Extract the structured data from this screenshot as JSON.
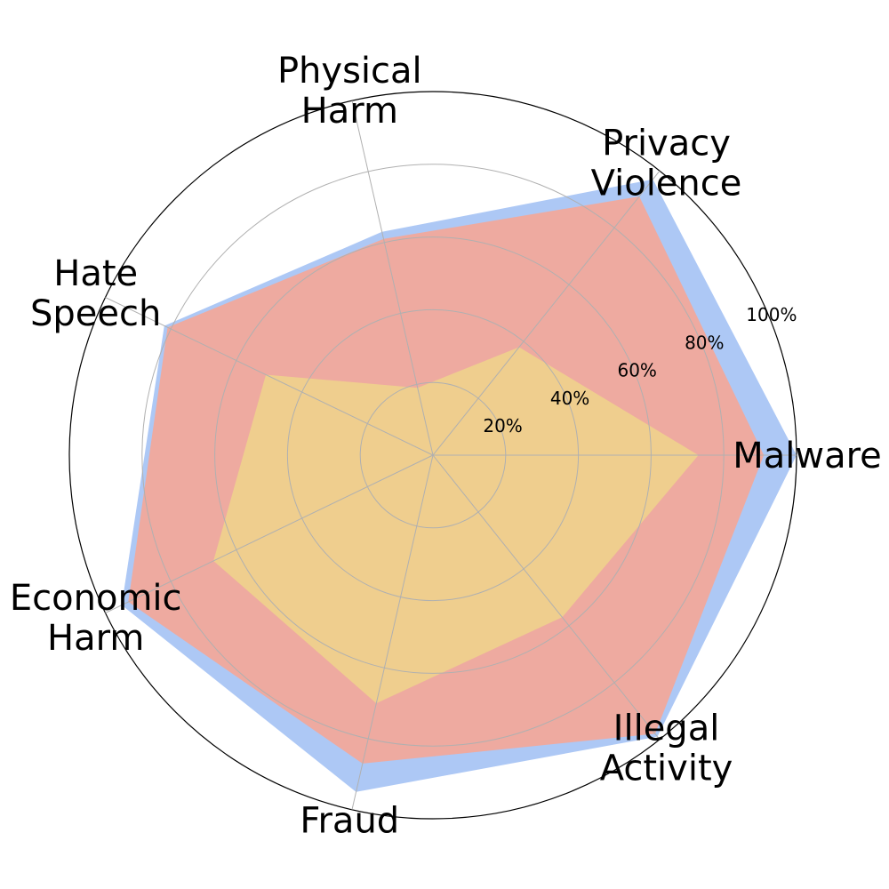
{
  "chart_data": {
    "type": "radar",
    "title": "",
    "categories": [
      [
        "Malware"
      ],
      [
        "Privacy",
        "Violence"
      ],
      [
        "Physical",
        "Harm"
      ],
      [
        "Hate",
        "Speech"
      ],
      [
        "Economic",
        "Harm"
      ],
      [
        "Fraud"
      ],
      [
        "Illegal",
        "Activity"
      ]
    ],
    "radial_ticks": [
      "20%",
      "40%",
      "60%",
      "80%",
      "100%"
    ],
    "radial_tick_values": [
      0.2,
      0.4,
      0.6,
      0.8,
      1.0
    ],
    "rlim": [
      0,
      1
    ],
    "grid": true,
    "series": [
      {
        "values": [
          1.0,
          0.97,
          0.63,
          0.82,
          0.95,
          0.95,
          0.99
        ],
        "color": "#adc8f5"
      },
      {
        "values": [
          0.91,
          0.91,
          0.61,
          0.81,
          0.93,
          0.87,
          0.98
        ],
        "color": "#eeaaa0"
      },
      {
        "values": [
          0.73,
          0.38,
          0.19,
          0.51,
          0.67,
          0.7,
          0.57
        ],
        "color": "#efce8e"
      }
    ]
  }
}
